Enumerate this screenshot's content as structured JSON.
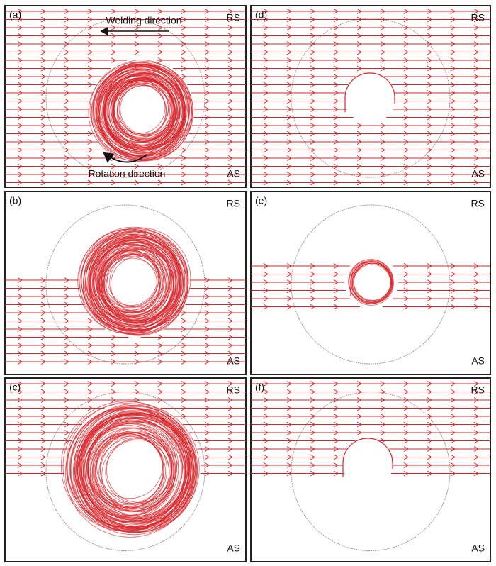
{
  "panels": [
    {
      "label": "(a)",
      "top_label": "RS",
      "bottom_label": "AS",
      "annotations": [
        "Welding direction",
        "Rotation direction"
      ]
    },
    {
      "label": "(d)",
      "top_label": "RS",
      "bottom_label": "AS"
    },
    {
      "label": "(b)",
      "top_label": "RS",
      "bottom_label": "AS"
    },
    {
      "label": "(e)",
      "top_label": "RS",
      "bottom_label": "AS"
    },
    {
      "label": "(c)",
      "top_label": "RS",
      "bottom_label": "AS"
    },
    {
      "label": "(f)",
      "top_label": "RS",
      "bottom_label": "AS"
    }
  ]
}
